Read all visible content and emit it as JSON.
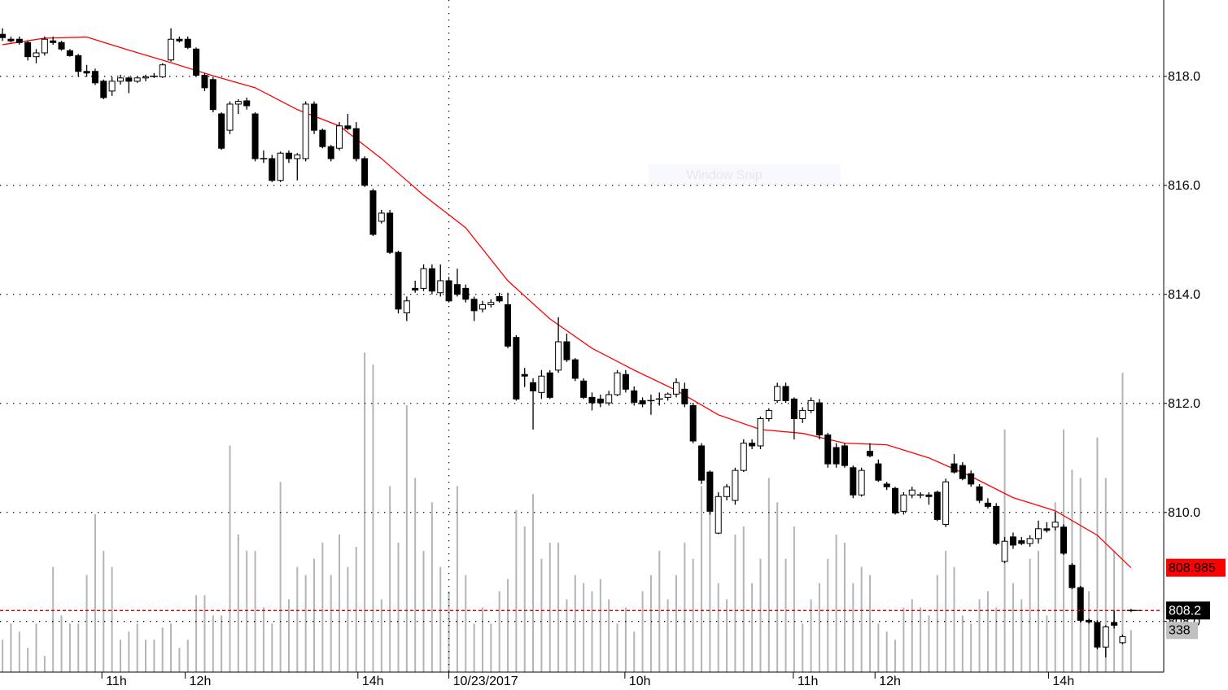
{
  "chart_data": {
    "type": "candlestick",
    "watermark": "Window Snip",
    "xlim": [
      -0.3,
      137.4
    ],
    "ylim": [
      807.07,
      819.4
    ],
    "yticks": [
      {
        "value": 808,
        "label": "808.0"
      },
      {
        "value": 810,
        "label": "810.0"
      },
      {
        "value": 812,
        "label": "812.0"
      },
      {
        "value": 814,
        "label": "814.0"
      },
      {
        "value": 816,
        "label": "816.0"
      },
      {
        "value": 818,
        "label": "818.0"
      }
    ],
    "xticks": [
      {
        "value": 11.8,
        "label": "11h"
      },
      {
        "value": 21.7,
        "label": "12h"
      },
      {
        "value": 42.2,
        "label": "14h"
      },
      {
        "value": 53.0,
        "label": "10/23/2017",
        "date_line": true
      },
      {
        "value": 73.9,
        "label": "10h"
      },
      {
        "value": 93.9,
        "label": "11h"
      },
      {
        "value": 103.6,
        "label": "12h"
      },
      {
        "value": 124.2,
        "label": "14h"
      }
    ],
    "grid": true,
    "last_price_line": true,
    "up_color": "#ffffff",
    "down_color": "#000000",
    "ohlc": [
      [
        818.77,
        818.88,
        818.65,
        818.71
      ],
      [
        818.68,
        818.73,
        818.62,
        818.65
      ],
      [
        818.68,
        818.73,
        818.58,
        818.62
      ],
      [
        818.62,
        818.65,
        818.29,
        818.36
      ],
      [
        818.36,
        818.5,
        818.24,
        818.43
      ],
      [
        818.43,
        818.73,
        818.38,
        818.68
      ],
      [
        818.65,
        818.73,
        818.58,
        818.62
      ],
      [
        818.62,
        818.65,
        818.47,
        818.5
      ],
      [
        818.47,
        818.5,
        818.36,
        818.38
      ],
      [
        818.38,
        818.41,
        817.99,
        818.09
      ],
      [
        818.09,
        818.21,
        817.99,
        818.06
      ],
      [
        818.09,
        818.14,
        817.84,
        817.88
      ],
      [
        817.91,
        817.94,
        817.58,
        817.61
      ],
      [
        817.73,
        817.99,
        817.64,
        817.91
      ],
      [
        817.91,
        818.03,
        817.85,
        817.97
      ],
      [
        817.97,
        818.0,
        817.69,
        817.91
      ],
      [
        817.91,
        818.0,
        817.88,
        817.97
      ],
      [
        817.97,
        818.03,
        817.91,
        817.99
      ],
      [
        818.0,
        818.06,
        817.97,
        818.0
      ],
      [
        817.99,
        818.24,
        817.97,
        818.21
      ],
      [
        818.3,
        818.88,
        818.27,
        818.68
      ],
      [
        818.68,
        818.73,
        818.62,
        818.65
      ],
      [
        818.68,
        818.73,
        818.5,
        818.53
      ],
      [
        818.5,
        818.53,
        817.99,
        818.02
      ],
      [
        818.02,
        818.06,
        817.73,
        817.79
      ],
      [
        817.94,
        817.99,
        817.34,
        817.39
      ],
      [
        817.31,
        817.34,
        816.65,
        816.68
      ],
      [
        817.01,
        817.54,
        816.94,
        817.49
      ],
      [
        817.49,
        817.58,
        817.31,
        817.54
      ],
      [
        817.55,
        817.61,
        817.39,
        817.46
      ],
      [
        817.31,
        817.34,
        816.44,
        816.49
      ],
      [
        816.49,
        816.64,
        816.41,
        816.49
      ],
      [
        816.49,
        816.56,
        816.06,
        816.09
      ],
      [
        816.09,
        816.62,
        816.06,
        816.59
      ],
      [
        816.59,
        816.64,
        816.41,
        816.49
      ],
      [
        816.49,
        816.59,
        816.09,
        816.56
      ],
      [
        816.49,
        817.54,
        816.44,
        817.49
      ],
      [
        817.49,
        817.54,
        816.94,
        817.01
      ],
      [
        817.01,
        817.04,
        816.68,
        816.71
      ],
      [
        816.71,
        816.74,
        816.44,
        816.49
      ],
      [
        816.68,
        817.16,
        816.64,
        817.09
      ],
      [
        817.09,
        817.31,
        817.01,
        817.04
      ],
      [
        817.04,
        817.16,
        816.44,
        816.49
      ],
      [
        816.49,
        816.53,
        815.97,
        816.0
      ],
      [
        815.9,
        815.94,
        815.07,
        815.1
      ],
      [
        815.34,
        815.55,
        815.3,
        815.49
      ],
      [
        815.49,
        815.55,
        814.74,
        814.77
      ],
      [
        814.77,
        814.8,
        813.65,
        813.73
      ],
      [
        813.66,
        813.96,
        813.51,
        813.88
      ],
      [
        814.11,
        814.25,
        814.03,
        814.08
      ],
      [
        814.11,
        814.55,
        814.06,
        814.47
      ],
      [
        814.47,
        814.55,
        814.0,
        814.06
      ],
      [
        814.03,
        814.55,
        813.96,
        814.25
      ],
      [
        814.25,
        814.32,
        813.85,
        813.88
      ],
      [
        814.18,
        814.47,
        813.96,
        814.0
      ],
      [
        814.11,
        814.18,
        813.85,
        813.91
      ],
      [
        813.91,
        813.96,
        813.51,
        813.7
      ],
      [
        813.73,
        813.88,
        813.67,
        813.81
      ],
      [
        813.81,
        813.91,
        813.76,
        813.85
      ],
      [
        813.96,
        814.03,
        813.85,
        813.88
      ],
      [
        813.81,
        814.03,
        813.01,
        813.05
      ],
      [
        813.21,
        813.25,
        812.05,
        812.08
      ],
      [
        812.53,
        812.65,
        812.3,
        812.5
      ],
      [
        812.38,
        812.46,
        811.52,
        812.23
      ],
      [
        812.2,
        812.61,
        812.08,
        812.5
      ],
      [
        812.56,
        812.61,
        812.08,
        812.11
      ],
      [
        812.61,
        813.58,
        812.56,
        813.13
      ],
      [
        813.13,
        813.28,
        812.76,
        812.8
      ],
      [
        812.8,
        812.83,
        812.41,
        812.46
      ],
      [
        812.41,
        812.46,
        812.08,
        812.11
      ],
      [
        812.11,
        812.2,
        811.87,
        812.01
      ],
      [
        812.08,
        812.16,
        811.93,
        812.01
      ],
      [
        812.01,
        812.23,
        811.96,
        812.16
      ],
      [
        812.16,
        812.61,
        812.13,
        812.56
      ],
      [
        812.53,
        812.61,
        812.2,
        812.26
      ],
      [
        812.23,
        812.31,
        811.96,
        812.02
      ],
      [
        812.05,
        812.11,
        811.93,
        811.99
      ],
      [
        812.05,
        812.16,
        811.79,
        812.04
      ],
      [
        812.08,
        812.2,
        811.96,
        812.08
      ],
      [
        812.11,
        812.2,
        812.05,
        812.17
      ],
      [
        812.17,
        812.46,
        812.11,
        812.38
      ],
      [
        812.26,
        812.38,
        811.93,
        811.99
      ],
      [
        811.96,
        812.01,
        811.27,
        811.31
      ],
      [
        811.22,
        811.27,
        810.52,
        810.59
      ],
      [
        810.74,
        810.77,
        809.96,
        810.02
      ],
      [
        809.62,
        810.37,
        809.6,
        810.29
      ],
      [
        810.29,
        810.52,
        810.22,
        810.47
      ],
      [
        810.22,
        810.82,
        810.14,
        810.77
      ],
      [
        810.77,
        811.34,
        810.74,
        811.27
      ],
      [
        811.27,
        811.34,
        811.16,
        811.22
      ],
      [
        811.22,
        811.76,
        811.16,
        811.72
      ],
      [
        811.72,
        811.91,
        811.67,
        811.87
      ],
      [
        812.05,
        812.38,
        812.01,
        812.31
      ],
      [
        812.31,
        812.38,
        812.01,
        812.05
      ],
      [
        812.08,
        812.11,
        811.34,
        811.72
      ],
      [
        811.72,
        811.93,
        811.64,
        811.87
      ],
      [
        811.87,
        812.11,
        811.82,
        812.05
      ],
      [
        812.01,
        812.08,
        811.34,
        811.42
      ],
      [
        811.42,
        811.46,
        810.82,
        810.89
      ],
      [
        811.19,
        811.27,
        810.82,
        810.89
      ],
      [
        811.22,
        811.27,
        810.82,
        810.86
      ],
      [
        810.82,
        810.86,
        810.26,
        810.32
      ],
      [
        810.32,
        810.82,
        810.29,
        810.77
      ],
      [
        811.12,
        811.27,
        811.01,
        811.04
      ],
      [
        810.89,
        810.97,
        810.56,
        810.59
      ],
      [
        810.52,
        810.56,
        810.41,
        810.47
      ],
      [
        810.44,
        810.47,
        809.96,
        809.99
      ],
      [
        810.02,
        810.37,
        809.96,
        810.32
      ],
      [
        810.32,
        810.47,
        810.26,
        810.41
      ],
      [
        810.32,
        810.37,
        810.26,
        810.32
      ],
      [
        810.32,
        810.37,
        810.14,
        810.29
      ],
      [
        810.37,
        810.4,
        809.84,
        809.87
      ],
      [
        809.78,
        810.62,
        809.73,
        810.56
      ],
      [
        810.89,
        811.07,
        810.71,
        810.74
      ],
      [
        810.86,
        810.92,
        810.59,
        810.62
      ],
      [
        810.71,
        810.77,
        810.47,
        810.52
      ],
      [
        810.47,
        810.52,
        810.17,
        810.22
      ],
      [
        810.17,
        810.26,
        810.07,
        810.11
      ],
      [
        810.11,
        810.17,
        809.4,
        809.43
      ],
      [
        809.1,
        809.55,
        809.07,
        809.47
      ],
      [
        809.55,
        809.63,
        809.33,
        809.4
      ],
      [
        809.48,
        809.55,
        809.4,
        809.43
      ],
      [
        809.43,
        809.58,
        809.37,
        809.52
      ],
      [
        809.52,
        809.85,
        809.43,
        809.7
      ],
      [
        809.7,
        809.82,
        809.63,
        809.67
      ],
      [
        809.73,
        810.0,
        809.67,
        809.82
      ],
      [
        809.73,
        809.78,
        809.22,
        809.25
      ],
      [
        809.03,
        809.07,
        808.59,
        808.62
      ],
      [
        808.62,
        808.65,
        807.98,
        808.02
      ],
      [
        808.02,
        808.05,
        807.96,
        807.99
      ],
      [
        807.98,
        808.02,
        807.49,
        807.53
      ],
      [
        807.53,
        807.93,
        807.34,
        807.9
      ],
      [
        807.98,
        808.2,
        807.87,
        807.93
      ],
      [
        807.61,
        807.76,
        807.58,
        807.72
      ],
      [
        808.2,
        808.23,
        808.17,
        808.2
      ]
    ],
    "ma": {
      "color": "#ff0000",
      "label_color": "#ff0000",
      "x": [
        0,
        5,
        10,
        15,
        20,
        25,
        30,
        35,
        40,
        45,
        50,
        55,
        60,
        65,
        70,
        75,
        80,
        85,
        90,
        95,
        100,
        105,
        110,
        115,
        120,
        125,
        130,
        134
      ],
      "values": [
        818.58,
        818.7,
        818.72,
        818.48,
        818.25,
        818.01,
        817.79,
        817.39,
        817.09,
        816.49,
        815.82,
        815.22,
        814.25,
        813.55,
        813.01,
        812.61,
        812.24,
        811.79,
        811.52,
        811.45,
        811.27,
        811.24,
        811.0,
        810.66,
        810.27,
        810.03,
        809.58,
        808.985
      ]
    },
    "volume": {
      "color": "#b4b4b4",
      "ylim": [
        0,
        5400
      ],
      "values": [
        260,
        390,
        325,
        195,
        390,
        130,
        845,
        455,
        390,
        390,
        780,
        1268,
        975,
        845,
        260,
        325,
        390,
        260,
        260,
        358,
        390,
        195,
        260,
        618,
        618,
        455,
        455,
        1820,
        1105,
        975,
        975,
        520,
        390,
        1528,
        585,
        845,
        780,
        910,
        1040,
        780,
        1105,
        845,
        1008,
        2568,
        2470,
        585,
        1495,
        1040,
        2145,
        1560,
        975,
        1365,
        845,
        650,
        1495,
        780,
        390,
        520,
        390,
        650,
        748,
        1300,
        1170,
        1430,
        910,
        1040,
        1040,
        585,
        780,
        715,
        650,
        748,
        585,
        390,
        520,
        325,
        650,
        780,
        975,
        585,
        780,
        1040,
        910,
        1495,
        1430,
        715,
        585,
        1105,
        1170,
        715,
        910,
        1560,
        1365,
        910,
        1170,
        390,
        585,
        715,
        910,
        1105,
        1040,
        715,
        845,
        780,
        390,
        325,
        260,
        520,
        585,
        520,
        455,
        780,
        975,
        845,
        455,
        390,
        585,
        650,
        520,
        1950,
        715,
        585,
        910,
        975,
        455,
        1365,
        1950,
        1625,
        1560,
        650,
        1885,
        1560,
        975,
        2405,
        338
      ]
    }
  }
}
